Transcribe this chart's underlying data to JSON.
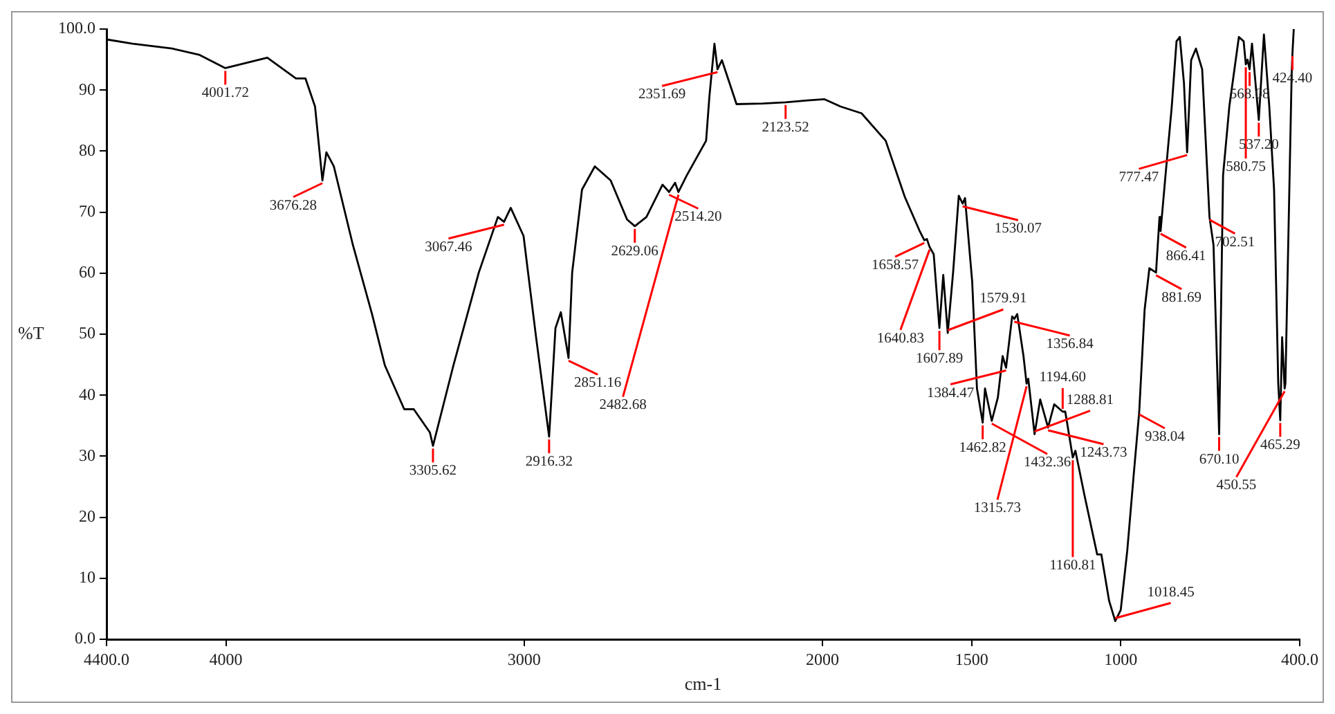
{
  "chart_data": {
    "type": "line",
    "xlabel": "cm-1",
    "ylabel": "%T",
    "x": [
      4400,
      4313,
      4180,
      4090,
      4001.72,
      3861,
      3765,
      3733,
      3701,
      3676.28,
      3663,
      3638,
      3574,
      3510,
      3467,
      3402,
      3370,
      3316,
      3305.62,
      3237,
      3152,
      3088,
      3067.46,
      3045,
      3002,
      2960,
      2916.32,
      2895,
      2877,
      2851.16,
      2839,
      2806,
      2763,
      2710,
      2655,
      2629.06,
      2590,
      2536,
      2514.2,
      2494,
      2482.68,
      2455,
      2390,
      2379,
      2362,
      2351.69,
      2337,
      2288,
      2200,
      2123.52,
      2050,
      1993,
      1939,
      1869,
      1788,
      1724,
      1675,
      1658.57,
      1650,
      1640.83,
      1627,
      1607.89,
      1595,
      1579.91,
      1562,
      1543,
      1530.07,
      1522,
      1498,
      1482,
      1462.82,
      1455,
      1432.36,
      1412,
      1396,
      1384.47,
      1364,
      1356.84,
      1347,
      1326,
      1315.73,
      1310,
      1288.81,
      1270,
      1243.73,
      1223,
      1194.6,
      1186,
      1160.81,
      1152,
      1122,
      1079,
      1065,
      1039,
      1018.45,
      1000,
      978,
      957,
      938.04,
      920,
      904,
      881.69,
      870,
      866.41,
      850,
      829,
      813,
      802,
      788,
      777.47,
      764,
      748,
      727,
      702.51,
      689,
      670.1,
      657,
      636,
      604,
      588,
      580.75,
      575,
      568.08,
      560,
      537.2,
      520,
      502,
      486,
      472,
      465.29,
      459,
      450.55,
      448,
      437,
      427,
      424.4,
      420
    ],
    "series": [
      {
        "color": "#000000",
        "values": [
          98.3,
          97.6,
          96.8,
          95.8,
          93.6,
          95.3,
          91.9,
          91.9,
          87.3,
          75.2,
          79.8,
          77.5,
          64.6,
          53.3,
          44.9,
          37.7,
          37.7,
          33.9,
          31.7,
          44.9,
          60.1,
          69.2,
          68.4,
          70.7,
          66.1,
          49.5,
          33.2,
          51,
          53.6,
          46.1,
          60.1,
          73.7,
          77.5,
          75.2,
          68.8,
          67.7,
          69.2,
          74.5,
          73.3,
          74.8,
          73.3,
          76,
          81.7,
          88.9,
          97.6,
          93.4,
          94.9,
          87.7,
          87.8,
          88,
          88.3,
          88.5,
          87.3,
          86.2,
          81.7,
          72.5,
          67,
          65.4,
          65.6,
          64.3,
          63.1,
          51,
          59.7,
          50.2,
          60.1,
          72.7,
          71.4,
          72.3,
          58.6,
          41.1,
          35.5,
          41.1,
          35.8,
          39.6,
          46.4,
          44.5,
          52.9,
          52.5,
          53.3,
          46.4,
          41.9,
          42.7,
          33.6,
          39.3,
          34.7,
          38.5,
          37.3,
          37.3,
          29.8,
          30.9,
          23.7,
          13.9,
          13.9,
          6.3,
          3,
          4.8,
          14.6,
          26.7,
          37.3,
          54,
          60.8,
          60.1,
          69.2,
          66.9,
          76,
          87.3,
          98,
          98.7,
          91.1,
          79.8,
          94.9,
          96.8,
          93.4,
          69.2,
          64.6,
          33.6,
          76,
          87.3,
          98.7,
          98,
          94.2,
          95,
          93.4,
          97.6,
          85.1,
          99.1,
          87.3,
          73.7,
          41.9,
          35.9,
          49.5,
          41.1,
          41.9,
          68.4,
          92.7,
          96,
          100
        ]
      }
    ],
    "xlim": [
      4400,
      400
    ],
    "xticks": [
      {
        "value": 4400,
        "label": "4400.0"
      },
      4000,
      3000,
      2000,
      1500,
      1000,
      {
        "value": 400,
        "label": "400.0"
      }
    ],
    "ylim": [
      0,
      100
    ],
    "yticks": [
      {
        "value": 0,
        "label": "0.0"
      },
      10,
      20,
      30,
      40,
      50,
      60,
      70,
      80,
      90,
      {
        "value": 100,
        "label": "100.0"
      }
    ],
    "grid": false,
    "legend": false,
    "marker": "none",
    "line_style": "solid",
    "annotations": [
      {
        "text": "4001.72",
        "x": 4001.72,
        "y": 93.6
      },
      {
        "text": "3676.28",
        "x": 3676.28,
        "y": 75.2
      },
      {
        "text": "3305.62",
        "x": 3305.62,
        "y": 31.7
      },
      {
        "text": "3067.46",
        "x": 3067.46,
        "y": 68.4
      },
      {
        "text": "2916.32",
        "x": 2916.32,
        "y": 33.2
      },
      {
        "text": "2851.16",
        "x": 2851.16,
        "y": 46.1
      },
      {
        "text": "2629.06",
        "x": 2629.06,
        "y": 67.7
      },
      {
        "text": "2514.20",
        "x": 2514.2,
        "y": 73.3
      },
      {
        "text": "2482.68",
        "x": 2482.68,
        "y": 73.3
      },
      {
        "text": "2351.69",
        "x": 2351.69,
        "y": 93.4
      },
      {
        "text": "2123.52",
        "x": 2123.52,
        "y": 88
      },
      {
        "text": "1658.57",
        "x": 1658.57,
        "y": 65.4
      },
      {
        "text": "1640.83",
        "x": 1640.83,
        "y": 64.3
      },
      {
        "text": "1607.89",
        "x": 1607.89,
        "y": 51
      },
      {
        "text": "1579.91",
        "x": 1579.91,
        "y": 50.2
      },
      {
        "text": "1530.07",
        "x": 1530.07,
        "y": 71.4
      },
      {
        "text": "1462.82",
        "x": 1462.82,
        "y": 35.5
      },
      {
        "text": "1432.36",
        "x": 1432.36,
        "y": 35.8
      },
      {
        "text": "1384.47",
        "x": 1384.47,
        "y": 44.5
      },
      {
        "text": "1356.84",
        "x": 1356.84,
        "y": 52.5
      },
      {
        "text": "1315.73",
        "x": 1315.73,
        "y": 41.9
      },
      {
        "text": "1288.81",
        "x": 1288.81,
        "y": 33.6
      },
      {
        "text": "1243.73",
        "x": 1243.73,
        "y": 34.7
      },
      {
        "text": "1194.60",
        "x": 1194.6,
        "y": 37.3
      },
      {
        "text": "1160.81",
        "x": 1160.81,
        "y": 29.8
      },
      {
        "text": "1018.45",
        "x": 1018.45,
        "y": 3
      },
      {
        "text": "938.04",
        "x": 938.04,
        "y": 37.3
      },
      {
        "text": "881.69",
        "x": 881.69,
        "y": 60.1
      },
      {
        "text": "866.41",
        "x": 866.41,
        "y": 66.9
      },
      {
        "text": "777.47",
        "x": 777.47,
        "y": 79.8
      },
      {
        "text": "702.51",
        "x": 702.51,
        "y": 69.2
      },
      {
        "text": "670.10",
        "x": 670.1,
        "y": 33.6
      },
      {
        "text": "580.75",
        "x": 580.75,
        "y": 94.2
      },
      {
        "text": "568.08",
        "x": 568.08,
        "y": 93.4
      },
      {
        "text": "537.20",
        "x": 537.2,
        "y": 85.1
      },
      {
        "text": "465.29",
        "x": 465.29,
        "y": 35.9
      },
      {
        "text": "450.55",
        "x": 450.55,
        "y": 41.1
      },
      {
        "text": "424.40",
        "x": 424.4,
        "y": 96
      }
    ]
  }
}
